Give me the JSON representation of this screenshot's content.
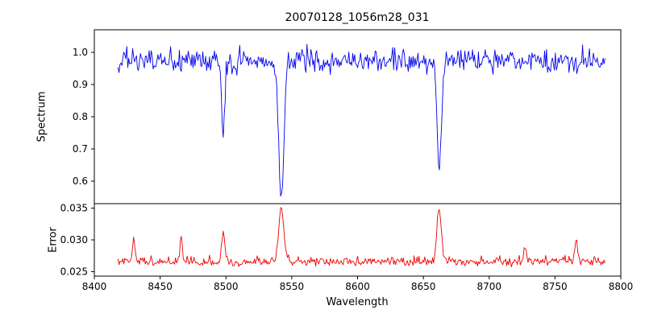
{
  "title": "20070128_1056m28_031",
  "xaxis": {
    "label": "Wavelength",
    "lim": [
      8400,
      8800
    ],
    "ticks": [
      8400,
      8450,
      8500,
      8550,
      8600,
      8650,
      8700,
      8750,
      8800
    ]
  },
  "chart_data": [
    {
      "type": "line",
      "name": "spectrum",
      "ylabel": "Spectrum",
      "color": "#0000ee",
      "ylim": [
        0.53,
        1.07
      ],
      "yticks": [
        0.6,
        0.7,
        0.8,
        0.9,
        1.0
      ],
      "ytick_decimals": 1,
      "legend": null,
      "grid": false,
      "model": {
        "seed": 42,
        "x_start": 8418,
        "x_end": 8788,
        "x_step": 0.74,
        "baseline": 0.972,
        "noise_sigma": 0.019,
        "noise_skew": 0,
        "features": [
          {
            "center": 8498,
            "amplitude": -0.245,
            "width": 1.1
          },
          {
            "center": 8542,
            "amplitude": -0.425,
            "width": 1.9
          },
          {
            "center": 8662,
            "amplitude": -0.36,
            "width": 1.6
          }
        ]
      }
    },
    {
      "type": "line",
      "name": "error",
      "ylabel": "Error",
      "color": "#ee0000",
      "ylim": [
        0.0243,
        0.0357
      ],
      "yticks": [
        0.025,
        0.03,
        0.035
      ],
      "ytick_decimals": 3,
      "legend": null,
      "grid": false,
      "model": {
        "seed": 7,
        "x_start": 8418,
        "x_end": 8788,
        "x_step": 0.74,
        "baseline": 0.0263,
        "noise_sigma": 0.00025,
        "noise_skew": 0.0004,
        "features": [
          {
            "center": 8430,
            "amplitude": 0.0032,
            "width": 1.0
          },
          {
            "center": 8466,
            "amplitude": 0.0036,
            "width": 0.9
          },
          {
            "center": 8498,
            "amplitude": 0.004,
            "width": 1.3
          },
          {
            "center": 8542,
            "amplitude": 0.0082,
            "width": 1.9
          },
          {
            "center": 8662,
            "amplitude": 0.0084,
            "width": 1.7
          },
          {
            "center": 8727,
            "amplitude": 0.0022,
            "width": 0.9
          },
          {
            "center": 8766,
            "amplitude": 0.0032,
            "width": 1.1
          }
        ]
      }
    }
  ]
}
